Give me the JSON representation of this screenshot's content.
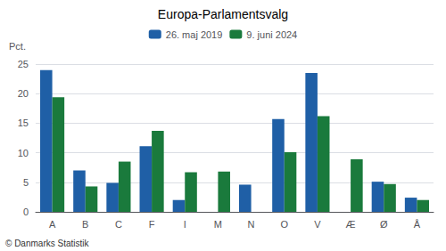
{
  "chart_data": {
    "type": "bar",
    "title": "Europa-Parlamentsvalg",
    "categories": [
      "A",
      "B",
      "C",
      "F",
      "I",
      "M",
      "N",
      "O",
      "V",
      "Æ",
      "Ø",
      "Å"
    ],
    "series": [
      {
        "name": "26. maj 2019",
        "color": "#1f5fa6",
        "values": [
          24.0,
          7.0,
          4.9,
          11.1,
          2.0,
          0.0,
          4.6,
          15.7,
          23.5,
          0.0,
          5.1,
          2.4
        ]
      },
      {
        "name": "9. juni 2024",
        "color": "#1a7a3c",
        "values": [
          19.4,
          4.3,
          8.5,
          13.7,
          6.7,
          6.8,
          0.0,
          10.1,
          16.2,
          8.9,
          4.7,
          2.0
        ]
      }
    ],
    "ylabel": "Pct.",
    "ylim": [
      0,
      25
    ],
    "yticks": [
      0,
      5,
      10,
      15,
      20,
      25
    ],
    "grid": true,
    "legend": "top",
    "annotations": [
      "© Danmarks Statistik"
    ]
  }
}
